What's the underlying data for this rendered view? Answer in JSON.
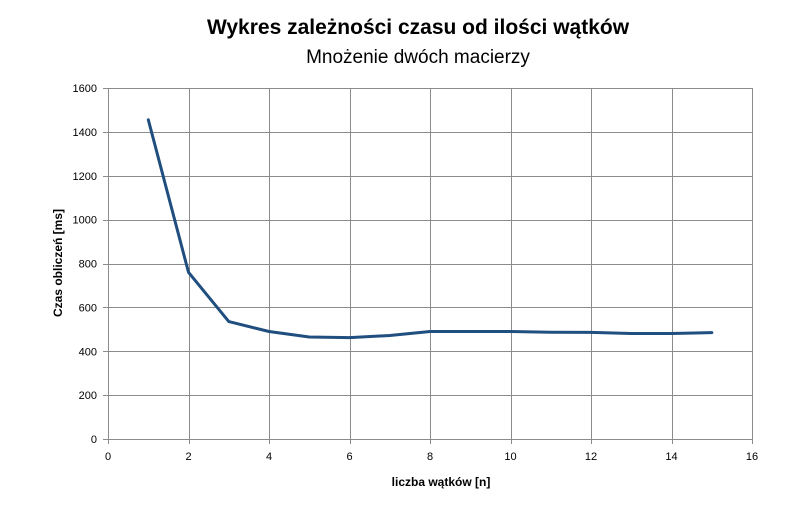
{
  "chart_data": {
    "type": "line",
    "title": "Wykres zależności czasu od ilości wątków",
    "subtitle": "Mnożenie dwóch macierzy",
    "xlabel": "liczba wątków [n]",
    "ylabel": "Czas obliczeń [ms]",
    "xlim": [
      0,
      16
    ],
    "ylim": [
      0,
      1600
    ],
    "xticks": [
      0,
      2,
      4,
      6,
      8,
      10,
      12,
      14,
      16
    ],
    "yticks": [
      0,
      200,
      400,
      600,
      800,
      1000,
      1200,
      1400,
      1600
    ],
    "grid": true,
    "legend": "none",
    "series": [
      {
        "color": "#1f4e7f",
        "x": [
          1,
          2,
          3,
          4,
          5,
          6,
          7,
          8,
          9,
          10,
          11,
          12,
          13,
          14,
          15
        ],
        "y": [
          1455,
          760,
          535,
          490,
          465,
          462,
          472,
          490,
          490,
          490,
          487,
          486,
          481,
          481,
          485
        ]
      }
    ]
  }
}
